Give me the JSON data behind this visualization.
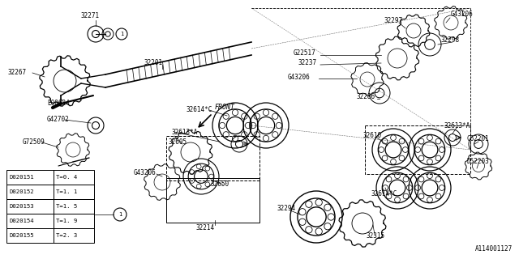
{
  "background_color": "#ffffff",
  "diagram_id": "A114001127",
  "table_data": [
    [
      "D020151",
      "T=0. 4"
    ],
    [
      "D020152",
      "T=1. 1"
    ],
    [
      "D020153",
      "T=1. 5"
    ],
    [
      "D020154",
      "T=1. 9"
    ],
    [
      "D020155",
      "T=2. 3"
    ]
  ],
  "line_color": "#000000",
  "text_color": "#000000",
  "label_font_size": 5.5
}
